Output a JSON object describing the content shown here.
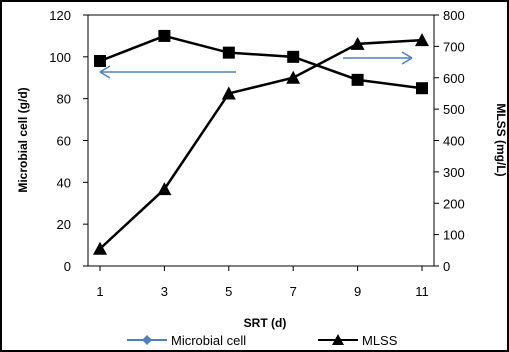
{
  "chart_data": {
    "type": "line",
    "x": [
      1,
      3,
      5,
      7,
      9,
      11
    ],
    "xlabel": "SRT (d)",
    "ylabel_left": "Microbial cell (g/d)",
    "ylabel_right": "MLSS (mg/L)",
    "ylim_left": [
      0,
      120
    ],
    "ylim_right": [
      0,
      800
    ],
    "yticks_left": [
      0,
      20,
      40,
      60,
      80,
      100,
      120
    ],
    "yticks_right": [
      0,
      100,
      200,
      300,
      400,
      500,
      600,
      700,
      800
    ],
    "grid": false,
    "legend_position": "bottom",
    "series": [
      {
        "name": "Microbial cell",
        "axis": "left",
        "marker": "diamond",
        "overlay_marker": "square",
        "line_color": "#000000",
        "marker_color": "#4f81bd",
        "values": [
          98,
          110,
          102,
          100,
          89,
          85
        ]
      },
      {
        "name": "MLSS",
        "axis": "right",
        "marker": "triangle",
        "line_color": "#000000",
        "marker_color": "#000000",
        "values": [
          55,
          245,
          550,
          600,
          708,
          720
        ]
      }
    ],
    "annotations": [
      {
        "type": "arrow",
        "direction": "left",
        "color": "#4f81bd",
        "meaning": "points to left axis"
      },
      {
        "type": "arrow",
        "direction": "right",
        "color": "#4f81bd",
        "meaning": "points to right axis"
      }
    ]
  }
}
